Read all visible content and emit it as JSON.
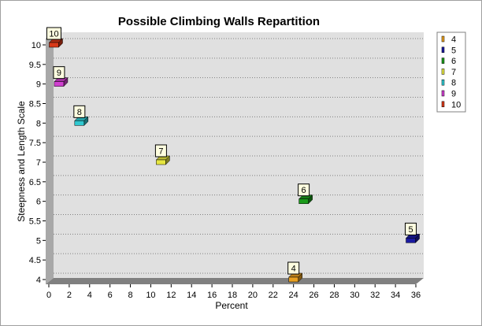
{
  "chart_data": {
    "type": "scatter",
    "title": "Possible Climbing Walls Repartition",
    "xlabel": "Percent",
    "ylabel": "Steepness and Length Scale",
    "xlim": [
      0,
      36
    ],
    "ylim": [
      4,
      10
    ],
    "x_ticks": [
      "0",
      "2",
      "4",
      "6",
      "8",
      "10",
      "12",
      "14",
      "16",
      "18",
      "20",
      "22",
      "24",
      "26",
      "28",
      "30",
      "32",
      "34",
      "36"
    ],
    "y_ticks": [
      "4",
      "4.5",
      "5",
      "5.5",
      "6",
      "6.5",
      "7",
      "7.5",
      "8",
      "8.5",
      "9",
      "9.5",
      "10"
    ],
    "grid": "horizontal dotted",
    "legend_position": "right",
    "series": [
      {
        "name": "4",
        "x": 24,
        "y": 4,
        "label": "4",
        "color": "#e8a020"
      },
      {
        "name": "5",
        "x": 35.5,
        "y": 5,
        "label": "5",
        "color": "#1a1aa0"
      },
      {
        "name": "6",
        "x": 25,
        "y": 6,
        "label": "6",
        "color": "#1a9a1a"
      },
      {
        "name": "7",
        "x": 11,
        "y": 7,
        "label": "7",
        "color": "#e6e640"
      },
      {
        "name": "8",
        "x": 3,
        "y": 8,
        "label": "8",
        "color": "#30c8d0"
      },
      {
        "name": "9",
        "x": 1,
        "y": 9,
        "label": "9",
        "color": "#d040d0"
      },
      {
        "name": "10",
        "x": 0.5,
        "y": 10,
        "label": "10",
        "color": "#d83818"
      }
    ]
  }
}
